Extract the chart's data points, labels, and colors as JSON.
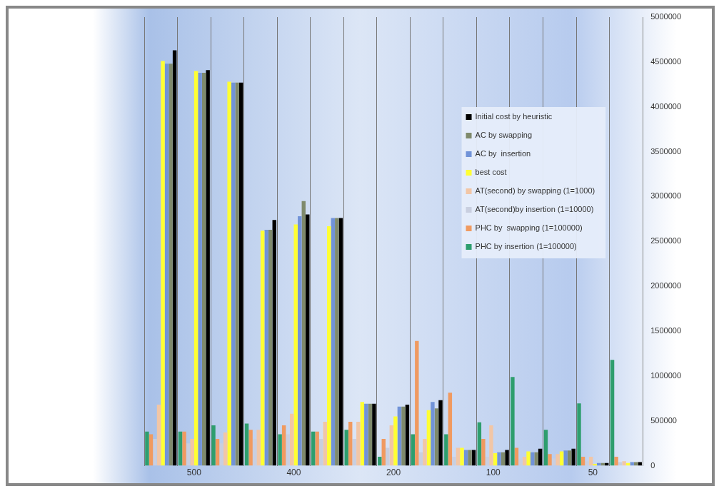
{
  "chart_data": {
    "type": "bar",
    "categories": [
      null,
      "500",
      null,
      null,
      "400",
      null,
      null,
      "200",
      null,
      null,
      "100",
      null,
      null,
      "50",
      null
    ],
    "series": [
      {
        "name": "Initial cost by heuristic",
        "color": "#000000",
        "values": [
          4630000,
          4410000,
          4270000,
          2740000,
          2800000,
          2760000,
          690000,
          680000,
          730000,
          175000,
          175000,
          190000,
          190000,
          30000,
          40000
        ]
      },
      {
        "name": "AC by swapping",
        "color": "#7f8a6c",
        "values": [
          4480000,
          4380000,
          4270000,
          2630000,
          2950000,
          2760000,
          690000,
          660000,
          640000,
          175000,
          150000,
          150000,
          170000,
          30000,
          40000
        ]
      },
      {
        "name": "AC by  insertion",
        "color": "#7193d8",
        "values": [
          4480000,
          4380000,
          4270000,
          2630000,
          2780000,
          2760000,
          690000,
          660000,
          710000,
          175000,
          150000,
          150000,
          170000,
          30000,
          40000
        ]
      },
      {
        "name": "best cost",
        "color": "#ffff33",
        "values": [
          4510000,
          4400000,
          4280000,
          2620000,
          2690000,
          2670000,
          710000,
          550000,
          620000,
          200000,
          140000,
          160000,
          160000,
          20000,
          30000
        ]
      },
      {
        "name": "AT(second) by swapping (1=1000)",
        "color": "#f2c6a6",
        "values": [
          680000,
          300000,
          370000,
          400000,
          580000,
          490000,
          490000,
          450000,
          300000,
          200000,
          450000,
          100000,
          130000,
          100000,
          50000
        ]
      },
      {
        "name": "AT(second)by insertion (1=10000)",
        "color": "#c9cfe0",
        "values": [
          300000,
          250000,
          250000,
          300000,
          350000,
          300000,
          300000,
          200000,
          150000,
          100000,
          100000,
          80000,
          80000,
          50000,
          40000
        ]
      },
      {
        "name": "PHC by  swapping (1=100000)",
        "color": "#f09a60",
        "values": [
          350000,
          380000,
          300000,
          400000,
          450000,
          380000,
          490000,
          300000,
          1390000,
          815000,
          300000,
          200000,
          130000,
          100000,
          100000
        ]
      },
      {
        "name": "PHC by insertion (1=100000)",
        "color": "#2e9e6e",
        "values": [
          380000,
          380000,
          450000,
          470000,
          350000,
          380000,
          400000,
          100000,
          350000,
          350000,
          485000,
          990000,
          400000,
          695000,
          1180000
        ]
      }
    ],
    "ylim": [
      0,
      5000000
    ],
    "yticks": [
      0,
      500000,
      1000000,
      1500000,
      2000000,
      2500000,
      3000000,
      3500000,
      4000000,
      4500000,
      5000000
    ],
    "grid": "x",
    "legend": "top right"
  }
}
